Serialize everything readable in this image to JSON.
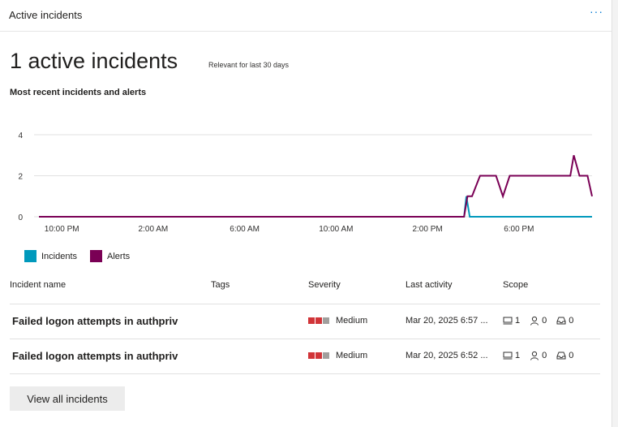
{
  "card": {
    "title": "Active incidents",
    "more": "···"
  },
  "summary": {
    "count_text": "1 active incidents",
    "relevance": "Relevant for last 30 days"
  },
  "section_title": "Most recent incidents and alerts",
  "chart_data": {
    "type": "line",
    "x_ticks": [
      "10:00 PM",
      "2:00 AM",
      "6:00 AM",
      "10:00 AM",
      "2:00 PM",
      "6:00 PM"
    ],
    "y_ticks": [
      0,
      2,
      4
    ],
    "ylim": [
      0,
      4
    ],
    "grid": true,
    "legend_position": "bottom-left",
    "time_axis": "hours starting 9:00 PM",
    "x_range": [
      0,
      24.2
    ],
    "series": [
      {
        "name": "Incidents",
        "color": "#0099bc",
        "x": [
          0,
          18.6,
          18.7,
          18.85,
          24.2
        ],
        "y": [
          0,
          0,
          1,
          0,
          0
        ]
      },
      {
        "name": "Alerts",
        "color": "#7a0055",
        "x": [
          0,
          18.6,
          18.75,
          18.95,
          19.3,
          20.0,
          20.3,
          20.6,
          23.25,
          23.4,
          23.65,
          24.0,
          24.2
        ],
        "y": [
          0,
          0,
          1,
          1,
          2,
          2,
          1,
          2,
          2,
          3,
          2,
          2,
          1
        ]
      }
    ]
  },
  "table": {
    "headers": [
      "Incident name",
      "Tags",
      "Severity",
      "Last activity",
      "Scope"
    ],
    "rows": [
      {
        "name": "Failed logon attempts in authpriv",
        "tags": "",
        "severity": "Medium",
        "last_activity": "Mar 20, 2025 6:57 ...",
        "devices": "1",
        "users": "0",
        "mailboxes": "0"
      },
      {
        "name": "Failed logon attempts in authpriv",
        "tags": "",
        "severity": "Medium",
        "last_activity": "Mar 20, 2025 6:52 ...",
        "devices": "1",
        "users": "0",
        "mailboxes": "0"
      }
    ],
    "severity_colors": [
      "#d13438",
      "#d13438",
      "#a19f9d"
    ]
  },
  "view_all_label": "View all incidents"
}
